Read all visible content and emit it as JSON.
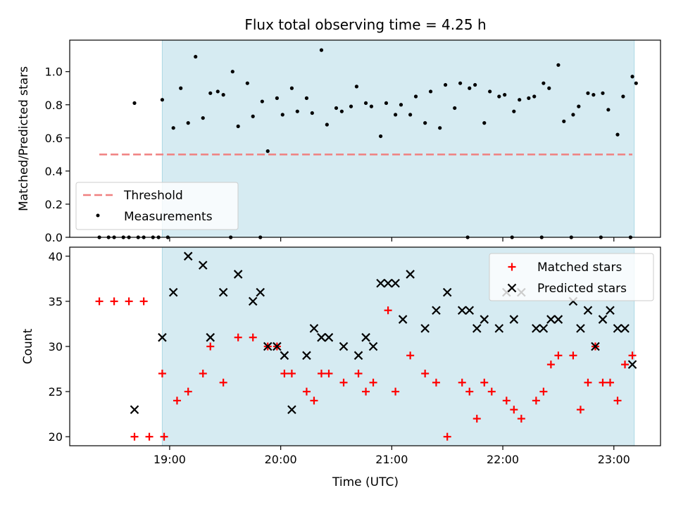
{
  "title": "Flux total observing time = 4.25 h",
  "colors": {
    "shade": "#add8e6",
    "threshold": "#f08080",
    "measurement": "#000000",
    "matched": "#ff0000",
    "predicted": "#000000"
  },
  "chart_data": [
    {
      "type": "scatter",
      "ylabel": "Matched/Predicted stars",
      "ylim": [
        0,
        1.19
      ],
      "yticks": [
        0.0,
        0.2,
        0.4,
        0.6,
        0.8,
        1.0
      ],
      "ytick_labels": [
        "0.0",
        "0.2",
        "0.4",
        "0.6",
        "0.8",
        "1.0"
      ],
      "xlim": [
        18.1,
        23.42
      ],
      "shaded_x": [
        "18:56",
        "23:11"
      ],
      "threshold": {
        "name": "Threshold",
        "value": 0.5,
        "x": [
          "18:22",
          "23:10"
        ]
      },
      "legend": {
        "location": "lower-left",
        "entries": [
          "Threshold",
          "Measurements"
        ]
      },
      "series": [
        {
          "name": "Measurements",
          "x": [
            "18:22",
            "18:30",
            "18:38",
            "18:46",
            "18:54",
            "19:02",
            "19:10",
            "19:18",
            "19:26",
            "19:34",
            "19:42",
            "19:50",
            "19:58",
            "20:06",
            "20:14",
            "20:22",
            "20:30",
            "20:38",
            "20:46",
            "20:54",
            "21:02",
            "21:10",
            "21:18",
            "21:26",
            "21:34",
            "21:42",
            "21:50",
            "21:58",
            "22:06",
            "22:14",
            "22:22",
            "22:30",
            "22:38",
            "22:46",
            "22:54",
            "23:02",
            "23:10",
            "18:41",
            "18:56",
            "19:06",
            "19:14",
            "19:22",
            "19:29",
            "19:37",
            "19:45",
            "19:53",
            "20:01",
            "20:09",
            "20:17",
            "20:25",
            "20:33",
            "20:41",
            "20:49",
            "20:57",
            "21:05",
            "21:13",
            "21:21",
            "21:29",
            "21:37",
            "21:45",
            "21:53",
            "22:01",
            "22:09",
            "22:17",
            "22:25",
            "22:33",
            "22:41",
            "22:49",
            "22:57",
            "23:05",
            "23:12",
            "18:27",
            "18:35",
            "18:43",
            "18:51",
            "18:59",
            "19:33",
            "19:49",
            "21:41",
            "22:05",
            "22:21",
            "22:37",
            "22:53",
            "23:09"
          ],
          "y": [
            0.0,
            0.0,
            0.0,
            0.0,
            0.0,
            0.66,
            0.69,
            0.72,
            0.88,
            1.0,
            0.93,
            0.82,
            0.84,
            0.9,
            0.84,
            1.13,
            0.78,
            0.79,
            0.81,
            0.61,
            0.74,
            0.74,
            0.69,
            0.66,
            0.78,
            0.9,
            0.69,
            0.85,
            0.76,
            0.84,
            0.93,
            1.04,
            0.74,
            0.87,
            0.87,
            0.62,
            0.97,
            0.81,
            0.83,
            0.9,
            1.09,
            0.87,
            0.86,
            0.67,
            0.73,
            0.52,
            0.74,
            0.76,
            0.75,
            0.68,
            0.76,
            0.91,
            0.79,
            0.81,
            0.8,
            0.85,
            0.88,
            0.92,
            0.93,
            0.92,
            0.88,
            0.86,
            0.83,
            0.85,
            0.9,
            0.7,
            0.79,
            0.86,
            0.77,
            0.85,
            0.93,
            0.0,
            0.0,
            0.0,
            0.0,
            0.0,
            0.0,
            0.0,
            0.0,
            0.0,
            0.0,
            0.0,
            0.0,
            0.0
          ]
        }
      ]
    },
    {
      "type": "scatter",
      "xlabel": "Time (UTC)",
      "ylabel": "Count",
      "ylim": [
        19,
        41
      ],
      "yticks": [
        20,
        25,
        30,
        35,
        40
      ],
      "ytick_labels": [
        "20",
        "25",
        "30",
        "35",
        "40"
      ],
      "xlim": [
        18.1,
        23.42
      ],
      "xticks": [
        19,
        20,
        21,
        22,
        23
      ],
      "xtick_labels": [
        "19:00",
        "20:00",
        "21:00",
        "22:00",
        "23:00"
      ],
      "shaded_x": [
        "18:56",
        "23:11"
      ],
      "legend": {
        "location": "top-right",
        "entries": [
          "Matched stars",
          "Predicted stars"
        ]
      },
      "series": [
        {
          "name": "Matched stars",
          "x": [
            "18:22",
            "18:30",
            "18:38",
            "18:46",
            "18:41",
            "18:49",
            "18:57",
            "18:56",
            "19:04",
            "19:10",
            "19:18",
            "19:22",
            "19:29",
            "19:37",
            "19:45",
            "19:53",
            "19:58",
            "20:02",
            "20:06",
            "20:14",
            "20:18",
            "20:22",
            "20:26",
            "20:34",
            "20:42",
            "20:46",
            "20:50",
            "20:58",
            "21:02",
            "21:10",
            "21:18",
            "21:24",
            "21:30",
            "21:38",
            "21:42",
            "21:46",
            "21:50",
            "21:54",
            "22:02",
            "22:06",
            "22:10",
            "22:18",
            "22:22",
            "22:26",
            "22:30",
            "22:38",
            "22:42",
            "22:46",
            "22:50",
            "22:54",
            "22:58",
            "23:02",
            "23:06",
            "23:10"
          ],
          "y": [
            35,
            35,
            35,
            35,
            20,
            20,
            20,
            27,
            24,
            25,
            27,
            30,
            26,
            31,
            31,
            30,
            30,
            27,
            27,
            25,
            24,
            27,
            27,
            26,
            27,
            25,
            26,
            34,
            25,
            29,
            27,
            26,
            20,
            26,
            25,
            22,
            26,
            25,
            24,
            23,
            22,
            24,
            25,
            28,
            29,
            29,
            23,
            26,
            30,
            26,
            26,
            24,
            28,
            29
          ]
        },
        {
          "name": "Predicted stars",
          "x": [
            "18:41",
            "18:56",
            "19:02",
            "19:10",
            "19:18",
            "19:22",
            "19:29",
            "19:37",
            "19:45",
            "19:49",
            "19:53",
            "19:58",
            "20:02",
            "20:06",
            "20:14",
            "20:18",
            "20:22",
            "20:26",
            "20:34",
            "20:42",
            "20:46",
            "20:50",
            "20:54",
            "20:58",
            "21:02",
            "21:06",
            "21:10",
            "21:18",
            "21:24",
            "21:30",
            "21:38",
            "21:42",
            "21:46",
            "21:50",
            "21:58",
            "22:02",
            "22:06",
            "22:10",
            "22:18",
            "22:22",
            "22:26",
            "22:30",
            "22:38",
            "22:42",
            "22:46",
            "22:50",
            "22:54",
            "22:58",
            "23:02",
            "23:06",
            "23:10"
          ],
          "y": [
            23,
            31,
            36,
            40,
            39,
            31,
            36,
            38,
            35,
            36,
            30,
            30,
            29,
            23,
            29,
            32,
            31,
            31,
            30,
            29,
            31,
            30,
            37,
            37,
            37,
            33,
            38,
            32,
            34,
            36,
            34,
            34,
            32,
            33,
            32,
            36,
            33,
            36,
            32,
            32,
            33,
            33,
            35,
            32,
            34,
            30,
            33,
            34,
            32,
            32,
            28
          ]
        }
      ]
    }
  ]
}
